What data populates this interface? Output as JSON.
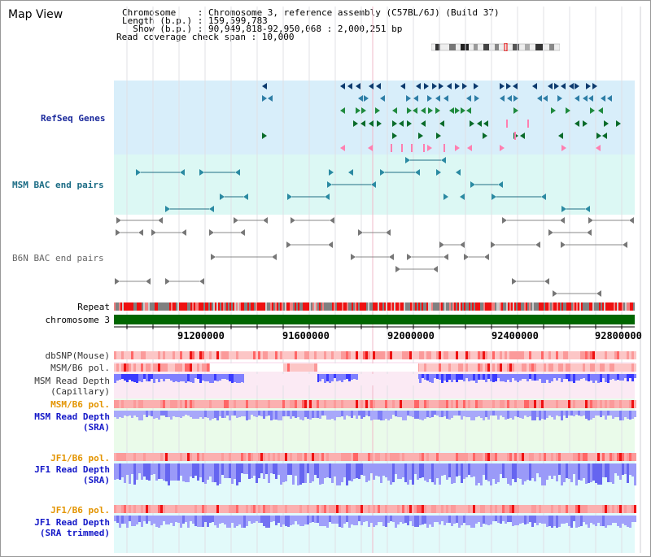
{
  "view_title": "Map View",
  "info": {
    "chromosome": "Chromosome    : Chromosome 3, reference assembly (C57BL/6J) (Build 37)",
    "length": "Length (b.p.) : 159,599,783",
    "show": "  Show (b.p.) : 90,949,818-92,950,068 : 2,000,251 bp",
    "span": "Read coverage check span : 10,000"
  },
  "tracks": {
    "refseq": "RefSeq Genes",
    "msm_bac": "MSM BAC end pairs",
    "b6n_bac": "B6N BAC end pairs",
    "repeat": "Repeat",
    "chromosome": "chromosome 3",
    "dbsnp": "dbSNP(Mouse)",
    "msm_b6_pol": "MSM/B6 pol.",
    "msm_depth_cap_1": "MSM Read Depth",
    "msm_depth_cap_2": "(Capillary)",
    "msm_b6_pol_sra": "MSM/B6 pol.",
    "msm_depth_sra_1": "MSM Read Depth",
    "msm_depth_sra_2": "(SRA)",
    "jf1_b6_pol": "JF1/B6 pol.",
    "jf1_depth_1": "JF1 Read Depth",
    "jf1_depth_2": "(SRA)",
    "jf1_b6_pol_2": "JF1/B6 pol.",
    "jf1_trim_1": "JF1 Read Depth",
    "jf1_trim_2": "(SRA trimmed)"
  },
  "axis": {
    "ticks": [
      "91200000",
      "91600000",
      "92000000",
      "92400000",
      "92800000"
    ]
  },
  "colors": {
    "refseq_bg": "#d8eefa",
    "bac_bg": "#dcf8f4",
    "pol_red": "#ff1a1a",
    "depth_blue": "#3a3aff",
    "chrom_green": "#006600"
  }
}
